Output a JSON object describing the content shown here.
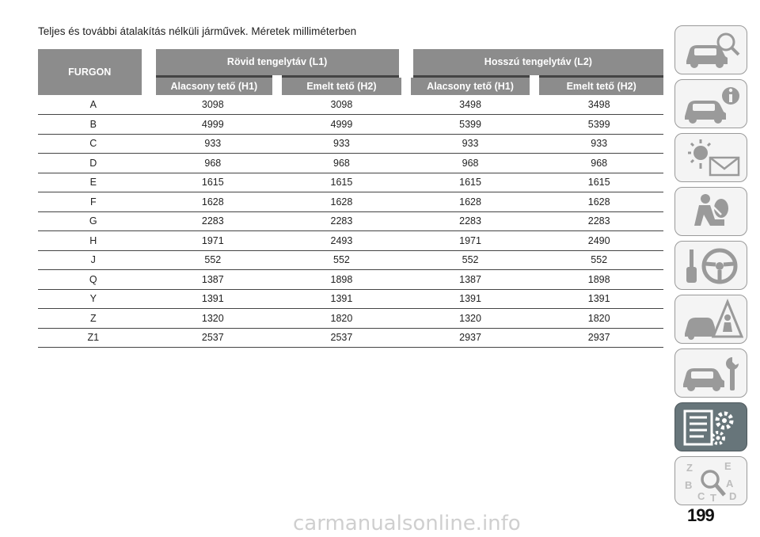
{
  "caption": "Teljes és további átalakítás nélküli járművek. Méretek milliméterben",
  "table": {
    "corner_header": "FURGON",
    "groups": [
      "Rövid tengelytáv (L1)",
      "Hosszú tengelytáv (L2)"
    ],
    "subheaders": [
      "Alacsony tető (H1)",
      "Emelt tető (H2)",
      "Alacsony tető (H1)",
      "Emelt tető (H2)"
    ],
    "rows": [
      {
        "label": "A",
        "values": [
          "3098",
          "3098",
          "3498",
          "3498"
        ]
      },
      {
        "label": "B",
        "values": [
          "4999",
          "4999",
          "5399",
          "5399"
        ]
      },
      {
        "label": "C",
        "values": [
          "933",
          "933",
          "933",
          "933"
        ]
      },
      {
        "label": "D",
        "values": [
          "968",
          "968",
          "968",
          "968"
        ]
      },
      {
        "label": "E",
        "values": [
          "1615",
          "1615",
          "1615",
          "1615"
        ]
      },
      {
        "label": "F",
        "values": [
          "1628",
          "1628",
          "1628",
          "1628"
        ]
      },
      {
        "label": "G",
        "values": [
          "2283",
          "2283",
          "2283",
          "2283"
        ]
      },
      {
        "label": "H",
        "values": [
          "1971",
          "2493",
          "1971",
          "2490"
        ]
      },
      {
        "label": "J",
        "values": [
          "552",
          "552",
          "552",
          "552"
        ]
      },
      {
        "label": "Q",
        "values": [
          "1387",
          "1898",
          "1387",
          "1898"
        ]
      },
      {
        "label": "Y",
        "values": [
          "1391",
          "1391",
          "1391",
          "1391"
        ]
      },
      {
        "label": "Z",
        "values": [
          "1320",
          "1820",
          "1320",
          "1820"
        ]
      },
      {
        "label": "Z1",
        "values": [
          "2537",
          "2537",
          "2937",
          "2937"
        ]
      }
    ]
  },
  "sidebar": {
    "tabs": [
      {
        "icon": "car-search-icon",
        "active": false
      },
      {
        "icon": "car-info-icon",
        "active": false
      },
      {
        "icon": "warning-light-envelope-icon",
        "active": false
      },
      {
        "icon": "airbag-person-icon",
        "active": false
      },
      {
        "icon": "key-steering-wheel-icon",
        "active": false
      },
      {
        "icon": "car-warning-triangle-icon",
        "active": false
      },
      {
        "icon": "car-wrench-icon",
        "active": false
      },
      {
        "icon": "specs-gear-icon",
        "active": true
      },
      {
        "icon": "index-search-letters-icon",
        "active": false
      }
    ],
    "index_letters": [
      "Z",
      "E",
      "B",
      "A",
      "C",
      "D",
      "T"
    ]
  },
  "page_number": "199",
  "watermark": "carmanualsonline.info",
  "colors": {
    "header_bg": "#8c8c8c",
    "active_tab_bg": "#67757a",
    "tab_border": "#9a9a9a"
  }
}
